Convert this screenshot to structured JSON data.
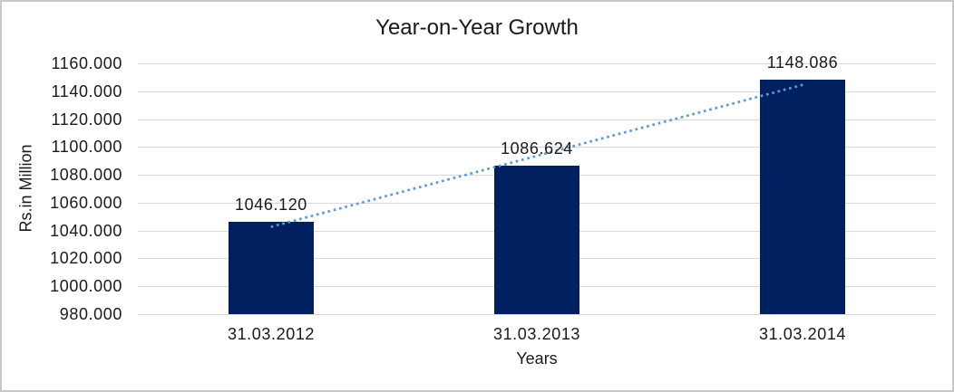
{
  "window": {
    "background": "#ffffff",
    "border_color": "#c8c8c8"
  },
  "chart_data": {
    "type": "bar",
    "title": "Year-on-Year Growth",
    "xlabel": "Years",
    "ylabel": "Rs.in Million",
    "categories": [
      "31.03.2012",
      "31.03.2013",
      "31.03.2014"
    ],
    "values": [
      1046.12,
      1086.624,
      1148.086
    ],
    "data_labels": [
      "1046.120",
      "1086.624",
      "1148.086"
    ],
    "ylim": [
      980,
      1160
    ],
    "y_ticks": [
      {
        "value": 980,
        "label": "980.000"
      },
      {
        "value": 1000,
        "label": "1000.000"
      },
      {
        "value": 1020,
        "label": "1020.000"
      },
      {
        "value": 1040,
        "label": "1040.000"
      },
      {
        "value": 1060,
        "label": "1060.000"
      },
      {
        "value": 1080,
        "label": "1080.000"
      },
      {
        "value": 1100,
        "label": "1100.000"
      },
      {
        "value": 1120,
        "label": "1120.000"
      },
      {
        "value": 1140,
        "label": "1140.000"
      },
      {
        "value": 1160,
        "label": "1160.000"
      }
    ],
    "grid": true,
    "legend": "none",
    "trendline": {
      "type": "linear",
      "style": "dotted"
    },
    "colors": {
      "bar": "#002060",
      "trendline": "#5b9bd5",
      "gridline": "#d9d9d9",
      "text": "#1a1a1a"
    }
  }
}
